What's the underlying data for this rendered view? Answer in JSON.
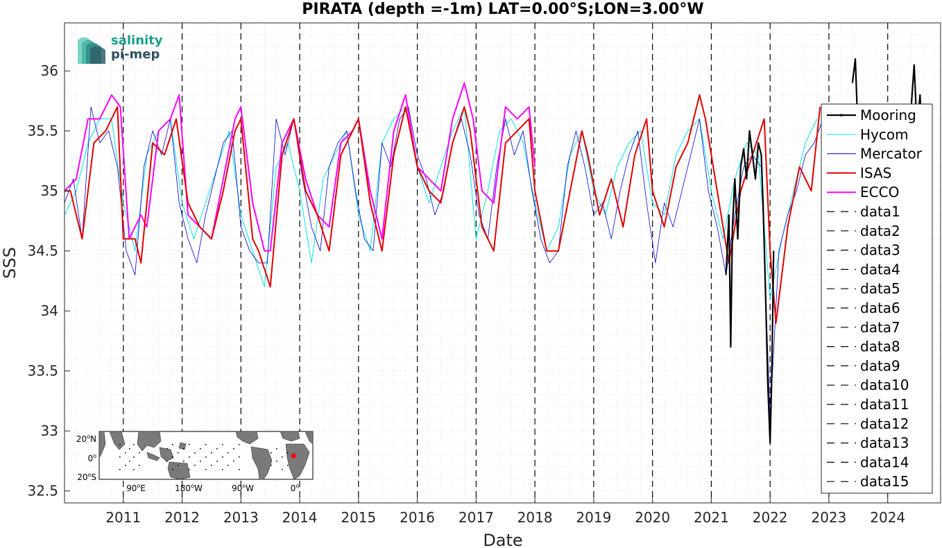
{
  "chart_data": {
    "type": "line",
    "title": "PIRATA (depth =-1m) LAT=0.00°S;LON=3.00°W",
    "xlabel": "Date",
    "ylabel": "SSS",
    "xlim": [
      2010.0,
      2024.9
    ],
    "ylim": [
      32.4,
      36.4
    ],
    "grid": true,
    "legend_position": "right",
    "x_ticks": [
      2011,
      2012,
      2013,
      2014,
      2015,
      2016,
      2017,
      2018,
      2019,
      2020,
      2021,
      2022,
      2023,
      2024
    ],
    "x_tick_labels": [
      "2011",
      "2012",
      "2013",
      "2014",
      "2015",
      "2016",
      "2017",
      "2018",
      "2019",
      "2020",
      "2021",
      "2022",
      "2023",
      "2024"
    ],
    "y_ticks": [
      32.5,
      33,
      33.5,
      34,
      34.5,
      35,
      35.5,
      36
    ],
    "y_tick_labels": [
      "32.5",
      "33",
      "33.5",
      "34",
      "34.5",
      "35",
      "35.5",
      "36"
    ],
    "series": [
      {
        "name": "Mooring",
        "color": "#000000",
        "x": [
          2021.25,
          2021.3,
          2021.33,
          2021.36,
          2021.4,
          2021.45,
          2021.5,
          2021.55,
          2021.6,
          2021.65,
          2021.7,
          2021.75,
          2021.8,
          2021.85,
          2021.88,
          2021.92,
          2021.96,
          2022.0,
          2022.03,
          2022.06,
          2023.4,
          2023.45,
          2023.5,
          2023.55,
          2024.4,
          2024.45,
          2024.5,
          2024.55,
          2024.6,
          2024.65,
          2024.7,
          2024.75
        ],
        "y": [
          34.3,
          34.8,
          33.7,
          34.7,
          35.1,
          34.6,
          35.2,
          35.35,
          35.1,
          35.5,
          35.3,
          35.1,
          35.4,
          35.3,
          34.9,
          34.2,
          33.4,
          32.9,
          33.5,
          34.5,
          35.9,
          36.1,
          35.4,
          35.7,
          35.7,
          36.05,
          35.5,
          35.8,
          35.3,
          35.6,
          35.5,
          35.6
        ]
      },
      {
        "name": "Hycom",
        "color": "#00e5e5",
        "x": [
          2010.0,
          2010.2,
          2010.4,
          2010.6,
          2010.8,
          2011.0,
          2011.2,
          2011.4,
          2011.6,
          2011.8,
          2012.0,
          2012.2,
          2012.4,
          2012.6,
          2012.8,
          2013.0,
          2013.2,
          2013.4,
          2013.6,
          2013.8,
          2014.0,
          2014.2,
          2014.4,
          2014.6,
          2014.8,
          2015.0,
          2015.2,
          2015.4,
          2015.6,
          2015.8,
          2016.0,
          2016.2,
          2016.4,
          2016.6,
          2016.8,
          2017.0,
          2017.2,
          2017.4,
          2017.6,
          2017.8,
          2018.0,
          2018.2,
          2018.4,
          2018.6,
          2018.8,
          2019.0,
          2019.2,
          2019.4,
          2019.6,
          2019.8,
          2020.0,
          2020.2,
          2020.4,
          2020.6,
          2020.8,
          2021.0,
          2021.2,
          2021.4,
          2021.6,
          2021.8,
          2022.0,
          2022.2,
          2022.4,
          2022.6,
          2022.8
        ],
        "y": [
          34.8,
          35.0,
          35.4,
          35.6,
          35.6,
          34.9,
          34.5,
          35.3,
          35.5,
          35.6,
          34.9,
          34.6,
          34.9,
          35.2,
          35.5,
          34.8,
          34.5,
          34.2,
          35.2,
          35.4,
          35.0,
          34.4,
          35.1,
          35.3,
          35.5,
          34.8,
          34.5,
          35.4,
          35.6,
          35.7,
          35.2,
          34.9,
          35.2,
          35.5,
          35.7,
          34.6,
          35.0,
          35.5,
          35.6,
          35.4,
          34.9,
          34.5,
          34.7,
          35.3,
          35.5,
          35.0,
          34.8,
          35.2,
          35.4,
          35.5,
          34.9,
          34.8,
          35.3,
          35.5,
          35.6,
          35.0,
          34.6,
          35.1,
          35.4,
          35.3,
          34.1,
          34.6,
          35.0,
          35.4,
          35.6
        ]
      },
      {
        "name": "Mercator",
        "color": "#0000cd",
        "x": [
          2010.0,
          2010.15,
          2010.3,
          2010.45,
          2010.6,
          2010.75,
          2010.9,
          2011.05,
          2011.2,
          2011.35,
          2011.5,
          2011.65,
          2011.8,
          2011.95,
          2012.1,
          2012.25,
          2012.4,
          2012.55,
          2012.7,
          2012.85,
          2013.0,
          2013.15,
          2013.3,
          2013.45,
          2013.6,
          2013.75,
          2013.9,
          2014.05,
          2014.2,
          2014.35,
          2014.5,
          2014.65,
          2014.8,
          2014.95,
          2015.1,
          2015.25,
          2015.4,
          2015.55,
          2015.7,
          2015.85,
          2016.0,
          2016.15,
          2016.3,
          2016.45,
          2016.6,
          2016.75,
          2016.9,
          2017.05,
          2017.2,
          2017.35,
          2017.5,
          2017.65,
          2017.8,
          2017.95,
          2018.1,
          2018.25,
          2018.4,
          2018.55,
          2018.7,
          2018.85,
          2019.0,
          2019.15,
          2019.3,
          2019.45,
          2019.6,
          2019.75,
          2019.9,
          2020.05,
          2020.2,
          2020.35,
          2020.5,
          2020.65,
          2020.8,
          2020.95,
          2021.1,
          2021.25,
          2021.4,
          2021.55,
          2021.7,
          2021.85,
          2022.0,
          2022.15,
          2022.3,
          2022.45,
          2022.6,
          2022.75,
          2022.9
        ],
        "y": [
          34.9,
          35.1,
          34.6,
          35.7,
          35.4,
          35.5,
          35.2,
          34.5,
          34.3,
          35.2,
          35.5,
          35.3,
          35.6,
          34.9,
          34.6,
          34.4,
          34.8,
          35.1,
          35.4,
          35.5,
          34.7,
          34.5,
          34.4,
          34.4,
          35.6,
          35.3,
          35.6,
          35.1,
          34.7,
          34.5,
          35.2,
          35.4,
          35.5,
          35.0,
          34.6,
          34.5,
          35.4,
          35.2,
          35.6,
          35.7,
          35.3,
          35.1,
          34.8,
          35.0,
          35.4,
          35.6,
          35.3,
          34.8,
          34.6,
          35.2,
          35.6,
          35.3,
          35.5,
          35.0,
          34.6,
          34.4,
          34.5,
          35.2,
          35.5,
          35.2,
          34.8,
          34.9,
          34.6,
          35.0,
          35.3,
          35.5,
          34.9,
          34.4,
          34.9,
          34.7,
          35.0,
          35.3,
          35.6,
          35.0,
          34.7,
          34.3,
          34.8,
          35.2,
          35.3,
          35.2,
          33.1,
          34.5,
          34.8,
          35.0,
          35.3,
          35.4,
          35.6
        ]
      },
      {
        "name": "ISAS",
        "color": "#e00000",
        "x": [
          2010.0,
          2010.1,
          2010.3,
          2010.5,
          2010.7,
          2010.9,
          2011.0,
          2011.2,
          2011.3,
          2011.5,
          2011.7,
          2011.9,
          2012.1,
          2012.3,
          2012.5,
          2012.7,
          2012.9,
          2013.0,
          2013.2,
          2013.3,
          2013.5,
          2013.7,
          2013.9,
          2014.1,
          2014.3,
          2014.5,
          2014.7,
          2014.9,
          2015.0,
          2015.2,
          2015.4,
          2015.6,
          2015.8,
          2016.0,
          2016.2,
          2016.4,
          2016.6,
          2016.8,
          2016.9,
          2017.1,
          2017.3,
          2017.5,
          2017.7,
          2017.9,
          2018.0,
          2018.2,
          2018.4,
          2018.6,
          2018.8,
          2018.9,
          2019.1,
          2019.3,
          2019.5,
          2019.7,
          2019.9,
          2020.0,
          2020.2,
          2020.4,
          2020.6,
          2020.8,
          2020.9,
          2021.1,
          2021.3,
          2021.5,
          2021.7,
          2021.9,
          2022.0,
          2022.1,
          2022.3,
          2022.5,
          2022.7,
          2022.85
        ],
        "y": [
          35.0,
          35.0,
          34.6,
          35.4,
          35.5,
          35.7,
          34.6,
          34.6,
          34.4,
          35.4,
          35.3,
          35.6,
          34.9,
          34.7,
          34.6,
          35.0,
          35.5,
          35.6,
          34.6,
          34.5,
          34.2,
          35.3,
          35.6,
          35.0,
          34.8,
          34.5,
          35.3,
          35.5,
          35.6,
          34.9,
          34.5,
          35.3,
          35.7,
          35.2,
          35.0,
          34.9,
          35.4,
          35.7,
          35.5,
          34.7,
          34.5,
          35.4,
          35.5,
          35.6,
          35.0,
          34.5,
          34.5,
          35.0,
          35.5,
          35.3,
          34.8,
          35.1,
          34.7,
          35.3,
          35.6,
          35.0,
          34.7,
          35.2,
          35.4,
          35.8,
          35.6,
          35.0,
          34.4,
          35.0,
          35.3,
          35.6,
          34.5,
          33.9,
          34.7,
          35.2,
          35.0,
          35.7
        ]
      },
      {
        "name": "ECCO",
        "color": "#ff00ff",
        "x": [
          2010.0,
          2010.2,
          2010.4,
          2010.6,
          2010.8,
          2010.95,
          2011.1,
          2011.3,
          2011.4,
          2011.6,
          2011.8,
          2011.95,
          2012.1,
          2012.3,
          2012.5,
          2012.7,
          2012.9,
          2013.0,
          2013.2,
          2013.4,
          2013.5,
          2013.7,
          2013.9,
          2014.1,
          2014.3,
          2014.5,
          2014.7,
          2014.9,
          2015.0,
          2015.2,
          2015.4,
          2015.6,
          2015.8,
          2016.0,
          2016.2,
          2016.4,
          2016.6,
          2016.8,
          2016.95,
          2017.1,
          2017.3,
          2017.5,
          2017.7,
          2017.9,
          2018.0
        ],
        "y": [
          35.0,
          35.1,
          35.6,
          35.6,
          35.8,
          35.7,
          34.6,
          34.8,
          34.7,
          35.5,
          35.6,
          35.8,
          34.8,
          34.7,
          34.6,
          35.1,
          35.6,
          35.7,
          34.9,
          34.5,
          34.5,
          35.4,
          35.6,
          35.1,
          34.8,
          34.7,
          35.4,
          35.5,
          35.6,
          35.0,
          34.6,
          35.5,
          35.8,
          35.2,
          35.1,
          35.0,
          35.6,
          35.9,
          35.6,
          35.0,
          34.9,
          35.7,
          35.6,
          35.7,
          35.2
        ]
      }
    ],
    "vertical_lines": {
      "style": "dashed",
      "color": "#000000",
      "x": [
        2011.0,
        2012.0,
        2013.0,
        2014.0,
        2015.0,
        2016.0,
        2017.0,
        2018.0,
        2019.0,
        2020.0,
        2021.0,
        2022.0,
        2023.0,
        2024.0
      ]
    },
    "legend": [
      "Mooring",
      "Hycom",
      "Mercator",
      "ISAS",
      "ECCO",
      "data1",
      "data2",
      "data3",
      "data4",
      "data5",
      "data6",
      "data7",
      "data8",
      "data9",
      "data10",
      "data11",
      "data12",
      "data13",
      "data14",
      "data15"
    ]
  },
  "logo": {
    "line1": "salinity",
    "line2": "pi-mep",
    "color1": "#1a9e8a",
    "color2": "#2f4f5f"
  },
  "inset_map": {
    "lat_labels": [
      "20",
      "0",
      "20"
    ],
    "lat_suffix": [
      "N",
      "",
      "S"
    ],
    "lon_labels": [
      "90",
      "180",
      "90",
      "0"
    ],
    "lon_suffix": [
      "E",
      "W",
      "W",
      ""
    ],
    "marker_color": "#ff0000"
  }
}
